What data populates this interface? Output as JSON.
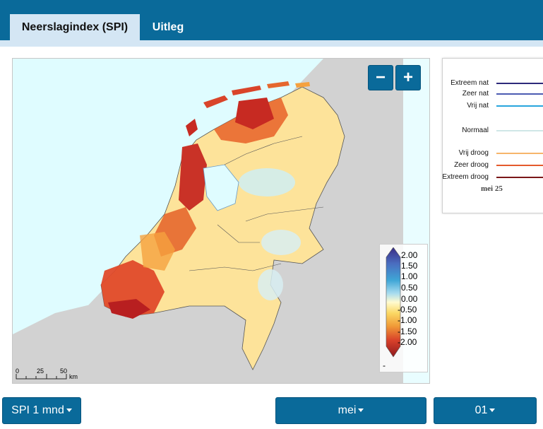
{
  "tabs": [
    {
      "label": "Neerslagindex (SPI)",
      "active": true
    },
    {
      "label": "Uitleg",
      "active": false
    }
  ],
  "map": {
    "zoom_out_label": "−",
    "zoom_in_label": "+",
    "legend": {
      "labels": [
        "2.00",
        "1.50",
        "1.00",
        "0.50",
        "0.00",
        "-0.50",
        "-1.00",
        "-1.50",
        "-2.00"
      ],
      "nodata_label": "-",
      "colors": [
        "#3a2c86",
        "#4a6ec0",
        "#3fa6d6",
        "#a8dcef",
        "#fffbd0",
        "#fbd864",
        "#f09a37",
        "#d8402a",
        "#8e1a1e"
      ]
    },
    "scale": {
      "ticks": [
        "0",
        "25",
        "50"
      ],
      "unit": "km"
    }
  },
  "side_chart": {
    "levels": [
      {
        "label": "Extreem nat",
        "color": "#2d2a7a"
      },
      {
        "label": "Zeer nat",
        "color": "#4c5bb2"
      },
      {
        "label": "Vrij nat",
        "color": "#28a5dd"
      },
      {
        "label": "Normaal",
        "color": "#cfe7e7"
      },
      {
        "label": "Vrij droog",
        "color": "#f6b56b"
      },
      {
        "label": "Zeer droog",
        "color": "#e45a2c"
      },
      {
        "label": "Extreem droog",
        "color": "#7a1718"
      }
    ],
    "date_label": "mei 25"
  },
  "controls": {
    "period_label": "SPI 1 mnd",
    "month_label": "mei",
    "day_label": "01"
  }
}
